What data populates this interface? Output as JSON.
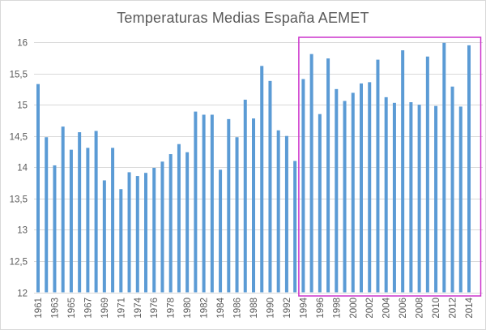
{
  "chart_data": {
    "type": "bar",
    "title": "Temperaturas Medias España AEMET",
    "xlabel": "",
    "ylabel": "",
    "ylim": [
      12,
      16
    ],
    "yticks": [
      12,
      12.5,
      13,
      13.5,
      14,
      14.5,
      15,
      15.5,
      16
    ],
    "ytick_labels": [
      "12",
      "12,5",
      "13",
      "13,5",
      "14",
      "14,5",
      "15",
      "15,5",
      "16"
    ],
    "grid": true,
    "legend": "none",
    "bar_color": "#5B9BD5",
    "categories": [
      "1961",
      "1962",
      "1963",
      "1964",
      "1965",
      "1966",
      "1967",
      "1968",
      "1969",
      "1970",
      "1971",
      "1972",
      "1974",
      "1975",
      "1976",
      "1977",
      "1978",
      "1979",
      "1980",
      "1981",
      "1982",
      "1983",
      "1984",
      "1985",
      "1986",
      "1987",
      "1988",
      "1989",
      "1990",
      "1991",
      "1992",
      "1993",
      "1994",
      "1995",
      "1996",
      "1997",
      "1998",
      "1999",
      "2000",
      "2001",
      "2002",
      "2003",
      "2004",
      "2005",
      "2006",
      "2007",
      "2008",
      "2009",
      "2010",
      "2011",
      "2012",
      "2013",
      "2014"
    ],
    "shown_x_labels": [
      "1961",
      "1963",
      "1965",
      "1967",
      "1969",
      "1971",
      "1974",
      "1976",
      "1978",
      "1980",
      "1982",
      "1984",
      "1986",
      "1988",
      "1990",
      "1992",
      "1994",
      "1996",
      "1998",
      "2000",
      "2002",
      "2004",
      "2006",
      "2008",
      "2010",
      "2012",
      "2014"
    ],
    "values": [
      15.33,
      14.48,
      14.03,
      14.65,
      14.28,
      14.56,
      14.31,
      14.58,
      13.79,
      14.31,
      13.65,
      13.92,
      13.86,
      13.91,
      13.99,
      14.09,
      14.21,
      14.37,
      14.24,
      14.89,
      14.84,
      14.84,
      13.96,
      14.77,
      14.48,
      15.08,
      14.78,
      15.62,
      15.38,
      14.59,
      14.5,
      14.1,
      15.41,
      15.81,
      14.85,
      15.74,
      15.25,
      15.06,
      15.19,
      15.34,
      15.36,
      15.72,
      15.12,
      15.03,
      15.87,
      15.04,
      15.0,
      15.77,
      14.98,
      15.99,
      15.29,
      14.97,
      15.95
    ],
    "annotations": [
      {
        "type": "highlight-rectangle",
        "color": "#CC33CC",
        "x_range": [
          "1994",
          "2014"
        ],
        "y_range": [
          12,
          16
        ]
      }
    ]
  }
}
